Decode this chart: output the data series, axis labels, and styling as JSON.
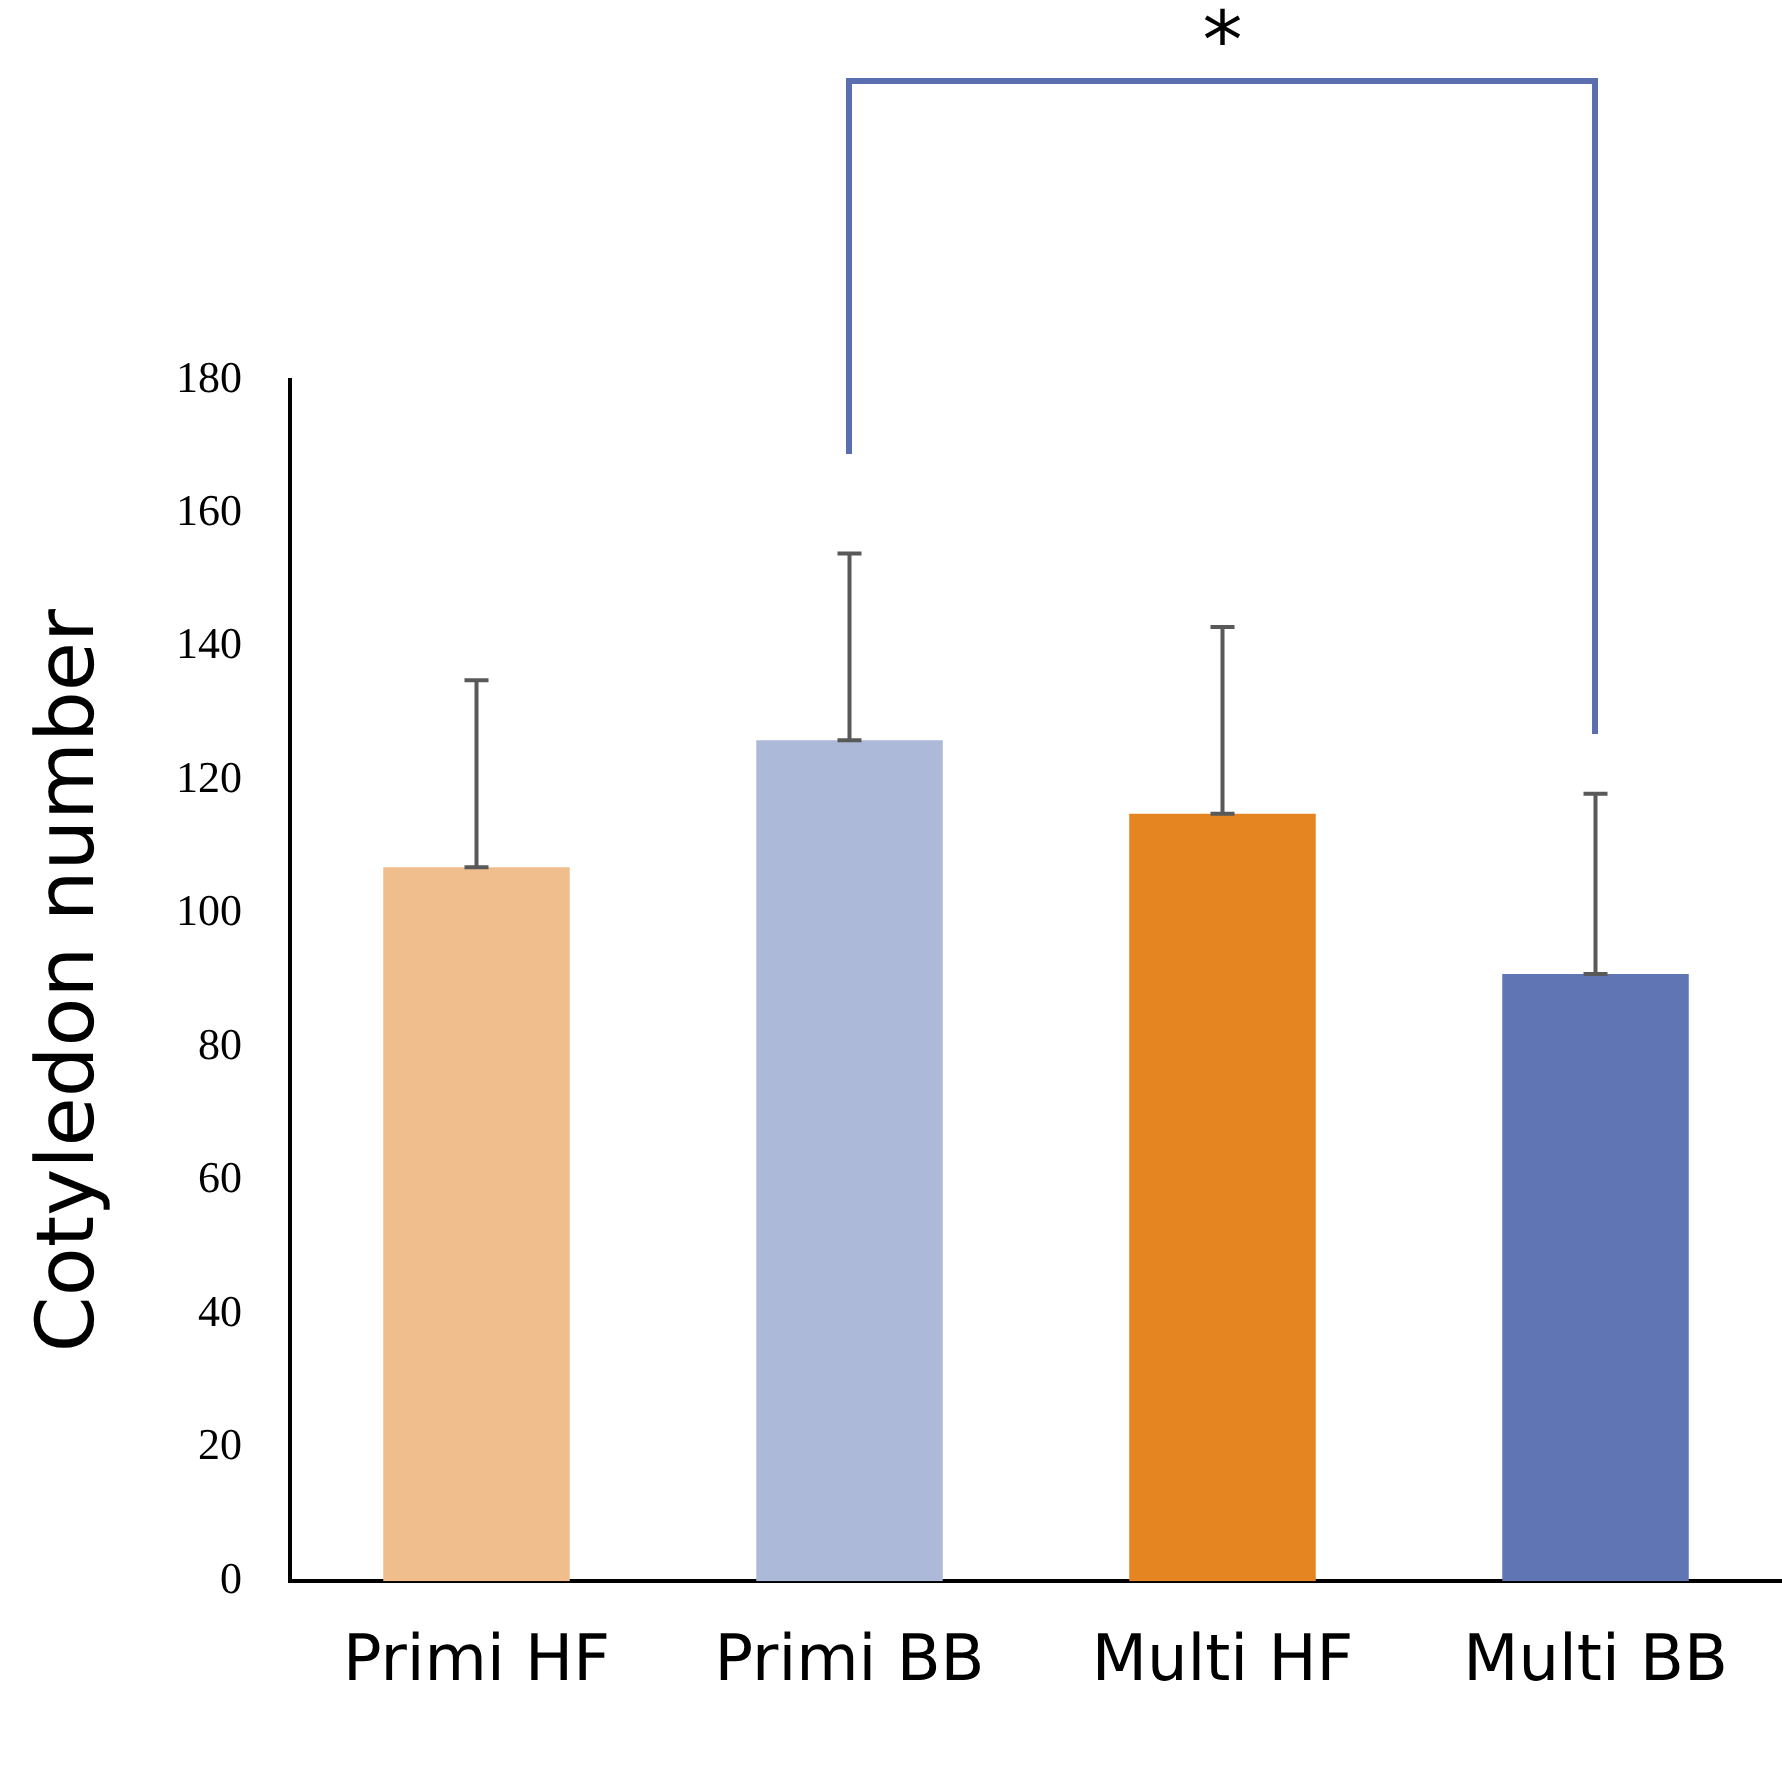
{
  "chart_data": {
    "type": "bar",
    "ylabel": "Cotyledon number",
    "categories": [
      "Primi HF",
      "Primi BB",
      "Multi HF",
      "Multi BB"
    ],
    "values": [
      107,
      126,
      115,
      91
    ],
    "colors": [
      "#efbe8c",
      "#adb9d8",
      "#e58522",
      "#6075b3"
    ],
    "errors": [
      [
        107,
        135
      ],
      [
        126,
        154
      ],
      [
        115,
        143
      ],
      [
        91,
        118
      ]
    ],
    "ylim": [
      0,
      180
    ],
    "yticks": [
      0,
      20,
      40,
      60,
      80,
      100,
      120,
      140,
      160,
      180
    ],
    "grid": false,
    "legend": false,
    "annotations": [
      "*"
    ]
  }
}
